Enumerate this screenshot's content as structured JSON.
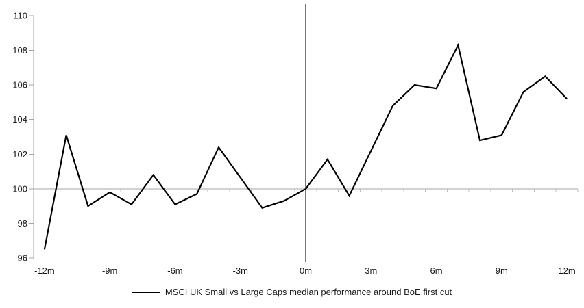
{
  "chart_data": {
    "type": "line",
    "title": "",
    "xlabel": "",
    "ylabel": "",
    "x": [
      -12,
      -11,
      -10,
      -9,
      -8,
      -7,
      -6,
      -5,
      -4,
      -3,
      -2,
      -1,
      0,
      1,
      2,
      3,
      4,
      5,
      6,
      7,
      8,
      9,
      10,
      11,
      12
    ],
    "series": [
      {
        "name": "MSCI UK Small vs Large Caps median performance around BoE first cut",
        "color": "#000000",
        "values": [
          96.5,
          103.1,
          99.0,
          99.8,
          99.1,
          100.8,
          99.1,
          99.7,
          102.4,
          100.65,
          98.9,
          99.3,
          100.0,
          101.7,
          99.6,
          102.2,
          104.8,
          106.0,
          105.8,
          108.3,
          102.8,
          103.1,
          105.6,
          106.5,
          105.2
        ]
      }
    ],
    "ylim": [
      96,
      110
    ],
    "ytick_step": 2,
    "ytick_labels": [
      "96",
      "98",
      "100",
      "102",
      "104",
      "106",
      "108",
      "110"
    ],
    "xticks": [
      {
        "month": -12,
        "label": "-12m"
      },
      {
        "month": -9,
        "label": "-9m"
      },
      {
        "month": -6,
        "label": "-6m"
      },
      {
        "month": -3,
        "label": "-3m"
      },
      {
        "month": 0,
        "label": "0m"
      },
      {
        "month": 3,
        "label": "3m"
      },
      {
        "month": 6,
        "label": "6m"
      },
      {
        "month": 9,
        "label": "9m"
      },
      {
        "month": 12,
        "label": "12m"
      }
    ],
    "baseline_value": 100,
    "event_line_month": 0,
    "grid": "baseline-only",
    "legend_position": "bottom-center",
    "colors": {
      "event_line": "#4F81BD",
      "axis": "#A6A6A6",
      "minor_tick": "#BFBFBF",
      "label_text": "#1A1A1A"
    }
  }
}
